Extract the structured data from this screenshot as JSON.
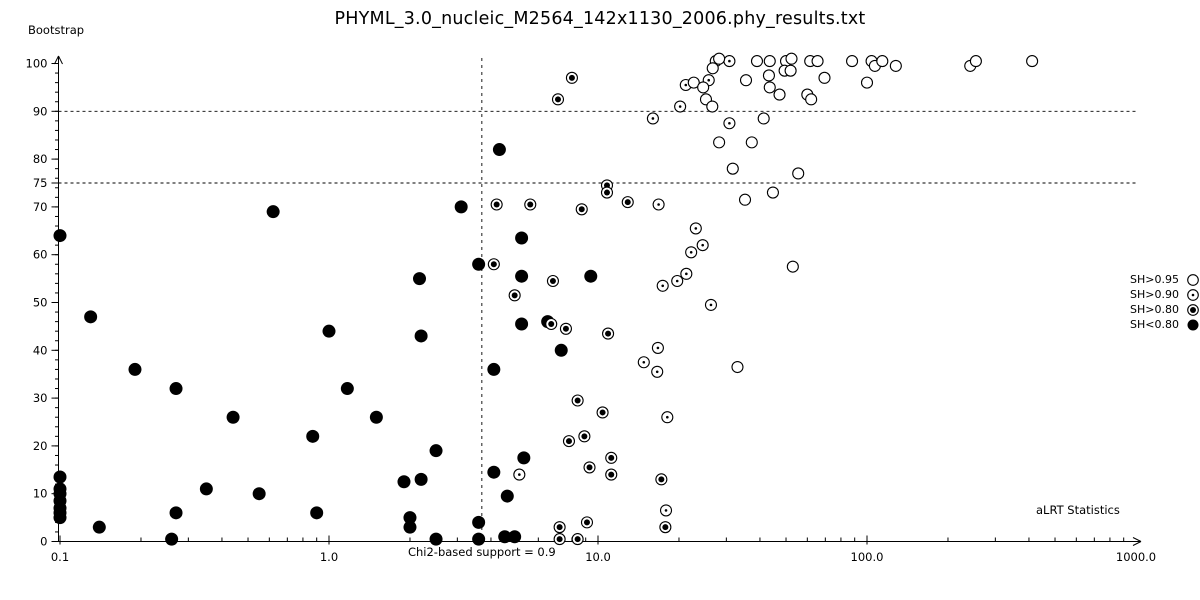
{
  "chart_data": {
    "type": "scatter",
    "title": "PHYML_3.0_nucleic_M2564_142x1130_2006.phy_results.txt",
    "xlabel": "aLRT Statistics",
    "ylabel": "Bootstrap",
    "x_scale": "log",
    "xlim": [
      0.1,
      1000.0
    ],
    "ylim": [
      0,
      100
    ],
    "x_tick_values": [
      0.1,
      1.0,
      10.0,
      100.0,
      1000.0
    ],
    "x_tick_labels": [
      "0.1",
      "1.0",
      "10.0",
      "100.0",
      "1000.0"
    ],
    "y_tick_values": [
      0,
      10,
      20,
      30,
      40,
      50,
      60,
      70,
      75,
      80,
      90,
      100
    ],
    "y_minor_tick_step": 2,
    "grid": false,
    "colors": {
      "foreground": "#000000",
      "background": "#ffffff"
    },
    "reference_lines": {
      "horizontal_y": [
        90,
        75
      ],
      "vertical_x": 3.7,
      "vertical_label": "Chi2-based support = 0.9"
    },
    "legend_position": "right",
    "legend": [
      {
        "label": "SH>0.95",
        "marker": "open-circle"
      },
      {
        "label": "SH>0.90",
        "marker": "dot-circle"
      },
      {
        "label": "SH>0.80",
        "marker": "bullseye-circle"
      },
      {
        "label": "SH<0.80",
        "marker": "filled-circle"
      }
    ],
    "series": [
      {
        "name": "SH>0.95",
        "marker": "open-circle",
        "points": [
          [
            27.4,
            100.5
          ],
          [
            28.2,
            101
          ],
          [
            26.7,
            99
          ],
          [
            39,
            100.5
          ],
          [
            43.5,
            100.5
          ],
          [
            50,
            100.5
          ],
          [
            52.4,
            101
          ],
          [
            61.5,
            100.5
          ],
          [
            65.5,
            100.5
          ],
          [
            88,
            100.5
          ],
          [
            104,
            100.5
          ],
          [
            107,
            99.5
          ],
          [
            114,
            100.5
          ],
          [
            128,
            99.5
          ],
          [
            242,
            99.5
          ],
          [
            254,
            100.5
          ],
          [
            411,
            100.5
          ],
          [
            35.5,
            96.5
          ],
          [
            43.2,
            97.5
          ],
          [
            49.4,
            98.5
          ],
          [
            52,
            98.5
          ],
          [
            69.5,
            97
          ],
          [
            100,
            96
          ],
          [
            22.7,
            96
          ],
          [
            24.6,
            95
          ],
          [
            43.5,
            95
          ],
          [
            47.3,
            93.5
          ],
          [
            60,
            93.5
          ],
          [
            62,
            92.5
          ],
          [
            25.2,
            92.5
          ],
          [
            26.6,
            91
          ],
          [
            41.3,
            88.5
          ],
          [
            28.2,
            83.5
          ],
          [
            37.3,
            83.5
          ],
          [
            31.7,
            78
          ],
          [
            55.5,
            77
          ],
          [
            44.7,
            73
          ],
          [
            35.2,
            71.5
          ],
          [
            53,
            57.5
          ],
          [
            33,
            36.5
          ]
        ]
      },
      {
        "name": "SH>0.90",
        "marker": "dot-circle",
        "points": [
          [
            30.8,
            100.5
          ],
          [
            25.8,
            96.5
          ],
          [
            21.2,
            95.5
          ],
          [
            20.2,
            91
          ],
          [
            16,
            88.5
          ],
          [
            30.8,
            87.5
          ],
          [
            16.8,
            70.5
          ],
          [
            23.1,
            65.5
          ],
          [
            24.5,
            62
          ],
          [
            22.2,
            60.5
          ],
          [
            21.3,
            56
          ],
          [
            19.7,
            54.5
          ],
          [
            17.4,
            53.5
          ],
          [
            26.3,
            49.5
          ],
          [
            16.7,
            40.5
          ],
          [
            14.8,
            37.5
          ],
          [
            16.6,
            35.5
          ],
          [
            18.1,
            26
          ],
          [
            5.1,
            14
          ],
          [
            17.9,
            6.5
          ]
        ]
      },
      {
        "name": "SH>0.80",
        "marker": "bullseye-circle",
        "points": [
          [
            8,
            97
          ],
          [
            7.1,
            92.5
          ],
          [
            10.8,
            74.5
          ],
          [
            10.8,
            73
          ],
          [
            12.9,
            71
          ],
          [
            8.7,
            69.5
          ],
          [
            4.2,
            70.5
          ],
          [
            5.6,
            70.5
          ],
          [
            4.1,
            58
          ],
          [
            6.8,
            54.5
          ],
          [
            4.9,
            51.5
          ],
          [
            6.7,
            45.5
          ],
          [
            7.6,
            44.5
          ],
          [
            10.9,
            43.5
          ],
          [
            8.4,
            29.5
          ],
          [
            10.4,
            27
          ],
          [
            8.9,
            22
          ],
          [
            7.8,
            21
          ],
          [
            11.2,
            17.5
          ],
          [
            9.3,
            15.5
          ],
          [
            11.2,
            14
          ],
          [
            17.2,
            13
          ],
          [
            7.2,
            3
          ],
          [
            9.1,
            4
          ],
          [
            17.8,
            3
          ],
          [
            7.2,
            0.5
          ],
          [
            8.4,
            0.5
          ]
        ]
      },
      {
        "name": "SH<0.80",
        "marker": "filled-circle",
        "points": [
          [
            0.1,
            64
          ],
          [
            0.13,
            47
          ],
          [
            0.62,
            69
          ],
          [
            0.19,
            36
          ],
          [
            0.27,
            32
          ],
          [
            1.17,
            32
          ],
          [
            0.44,
            26
          ],
          [
            1.5,
            26
          ],
          [
            0.87,
            22
          ],
          [
            1.0,
            44
          ],
          [
            2.17,
            55
          ],
          [
            2.2,
            43
          ],
          [
            0.35,
            11
          ],
          [
            0.55,
            10
          ],
          [
            0.27,
            6
          ],
          [
            0.9,
            6
          ],
          [
            0.14,
            3
          ],
          [
            0.26,
            0.5
          ],
          [
            0.1,
            13.5
          ],
          [
            0.1,
            11
          ],
          [
            0.1,
            10
          ],
          [
            0.1,
            8.5
          ],
          [
            0.1,
            7
          ],
          [
            0.1,
            6
          ],
          [
            0.1,
            5
          ],
          [
            1.9,
            12.5
          ],
          [
            2.2,
            13
          ],
          [
            2.0,
            5
          ],
          [
            2.0,
            3
          ],
          [
            4.3,
            82
          ],
          [
            3.1,
            70
          ],
          [
            5.2,
            63.5
          ],
          [
            3.6,
            58
          ],
          [
            5.2,
            55.5
          ],
          [
            9.4,
            55.5
          ],
          [
            5.2,
            45.5
          ],
          [
            6.5,
            46
          ],
          [
            7.3,
            40
          ],
          [
            4.1,
            36
          ],
          [
            2.5,
            19
          ],
          [
            5.3,
            17.5
          ],
          [
            4.1,
            14.5
          ],
          [
            4.6,
            9.5
          ],
          [
            3.6,
            4
          ],
          [
            2.5,
            0.5
          ],
          [
            3.6,
            0.5
          ],
          [
            4.5,
            1
          ],
          [
            4.9,
            1
          ]
        ]
      }
    ]
  }
}
